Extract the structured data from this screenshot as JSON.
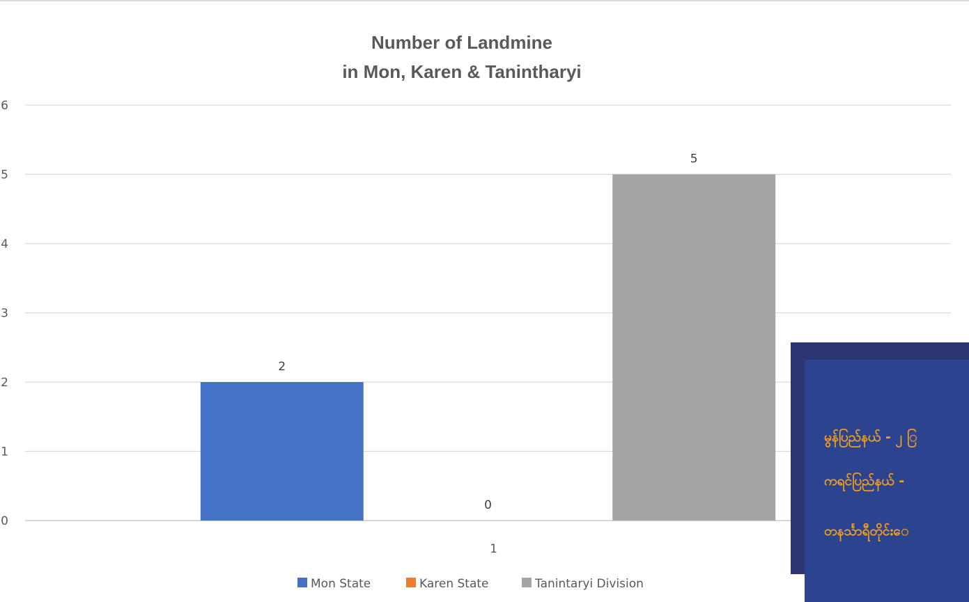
{
  "chart_data": {
    "type": "bar",
    "title": [
      "Number of Landmine",
      "in Mon, Karen & Tanintharyi"
    ],
    "categories": [
      "1"
    ],
    "series": [
      {
        "name": "Mon State",
        "values": [
          2
        ],
        "color": "#4472c4"
      },
      {
        "name": "Karen State",
        "values": [
          0
        ],
        "color": "#ed7d31"
      },
      {
        "name": "Tanintaryi Division",
        "values": [
          5
        ],
        "color": "#a5a5a5"
      }
    ],
    "ylim": [
      0,
      6
    ],
    "yticks": [
      "0",
      "1",
      "2",
      "3",
      "4",
      "5",
      "6"
    ],
    "grid": true,
    "legend": "bottom",
    "data_labels": true
  },
  "overlay": {
    "lines": [
      "မွန်ပြည်နယ် - ၂ ြ",
      "ကရင်ပြည်နယ် -",
      "တနင်္သာရီတိုင်းေ"
    ]
  }
}
